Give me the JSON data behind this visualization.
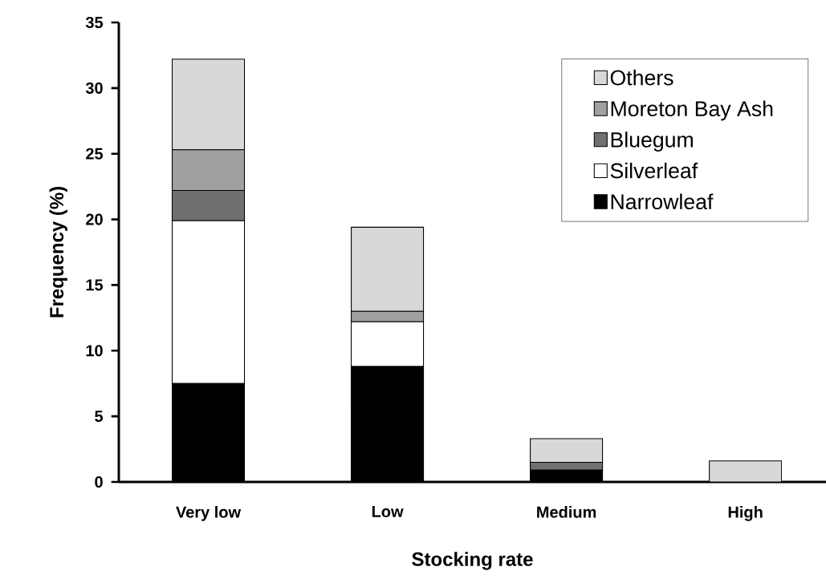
{
  "chart_data": {
    "type": "bar",
    "stacked": true,
    "xlabel": "Stocking rate",
    "ylabel": "Frequency (%)",
    "categories": [
      "Very low",
      "Low",
      "Medium",
      "High"
    ],
    "series": [
      {
        "name": "Narrowleaf",
        "color": "#000000",
        "values": [
          7.5,
          8.8,
          0.9,
          0
        ]
      },
      {
        "name": "Silverleaf",
        "color": "#ffffff",
        "values": [
          12.4,
          3.4,
          0,
          0
        ]
      },
      {
        "name": "Bluegum",
        "color": "#707070",
        "values": [
          2.3,
          0,
          0.6,
          0
        ]
      },
      {
        "name": "Moreton Bay Ash",
        "color": "#a0a0a0",
        "values": [
          3.1,
          0.8,
          0,
          0
        ]
      },
      {
        "name": "Others",
        "color": "#d8d8d8",
        "values": [
          6.9,
          6.4,
          1.8,
          1.6
        ]
      }
    ],
    "ylim": [
      0,
      35
    ],
    "yticks": [
      0,
      5,
      10,
      15,
      20,
      25,
      30,
      35
    ],
    "legend": "top right",
    "grid": false
  }
}
